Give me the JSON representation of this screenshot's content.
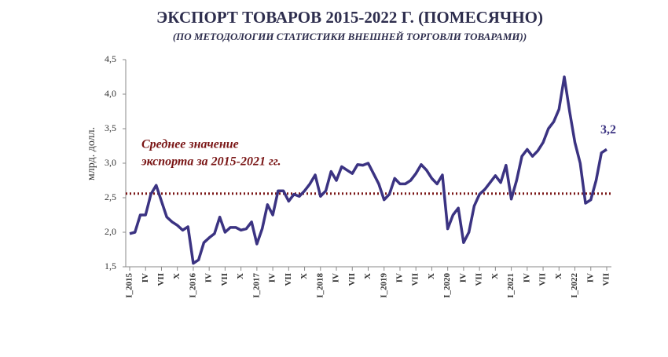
{
  "chart_data": {
    "type": "line",
    "title": "ЭКСПОРТ ТОВАРОВ 2015-2022 Г. (ПОМЕСЯЧНО)",
    "subtitle": "(ПО МЕТОДОЛОГИИ СТАТИСТИКИ ВНЕШНЕЙ ТОРГОВЛИ ТОВАРАМИ))",
    "y_label": "млрд. долл.",
    "categories": [
      "I_2015",
      null,
      null,
      "IV",
      null,
      null,
      "VII",
      null,
      null,
      "X",
      null,
      null,
      "I_2016",
      null,
      null,
      "IV",
      null,
      null,
      "VII",
      null,
      null,
      "X",
      null,
      null,
      "I_2017",
      null,
      null,
      "IV",
      null,
      null,
      "VII",
      null,
      null,
      "X",
      null,
      null,
      "I_2018",
      null,
      null,
      "IV",
      null,
      null,
      "VII",
      null,
      null,
      "X",
      null,
      null,
      "I_2019",
      null,
      null,
      "IV",
      null,
      null,
      "VII",
      null,
      null,
      "X",
      null,
      null,
      "I_2020",
      null,
      null,
      "IV",
      null,
      null,
      "VII",
      null,
      null,
      "X",
      null,
      null,
      "I_2021",
      null,
      null,
      "IV",
      null,
      null,
      "VII",
      null,
      null,
      "X",
      null,
      null,
      "I_2022",
      null,
      null,
      "IV",
      null,
      null,
      "VII"
    ],
    "series": [
      {
        "color": "#3b3382",
        "values": [
          1.98,
          2.0,
          2.25,
          2.25,
          2.55,
          2.68,
          2.45,
          2.22,
          2.15,
          2.1,
          2.03,
          2.08,
          1.55,
          1.6,
          1.85,
          1.92,
          1.98,
          2.22,
          2.0,
          2.07,
          2.07,
          2.03,
          2.05,
          2.15,
          1.83,
          2.05,
          2.4,
          2.25,
          2.6,
          2.6,
          2.45,
          2.55,
          2.52,
          2.6,
          2.7,
          2.83,
          2.52,
          2.6,
          2.88,
          2.75,
          2.95,
          2.9,
          2.85,
          2.98,
          2.97,
          3.0,
          2.85,
          2.7,
          2.47,
          2.55,
          2.78,
          2.7,
          2.7,
          2.75,
          2.85,
          2.98,
          2.9,
          2.78,
          2.7,
          2.83,
          2.05,
          2.25,
          2.35,
          1.85,
          2.0,
          2.38,
          2.55,
          2.62,
          2.72,
          2.82,
          2.72,
          2.97,
          2.48,
          2.75,
          3.1,
          3.2,
          3.1,
          3.18,
          3.3,
          3.5,
          3.6,
          3.78,
          4.25,
          3.75,
          3.3,
          3.0,
          2.42,
          2.47,
          2.75,
          3.15,
          3.2
        ],
        "value_labels": {
          "90": "3,2"
        }
      }
    ],
    "reference_line": {
      "value": 2.56,
      "color": "#7a1616",
      "label": [
        "Среднее значение",
        "экспорта за 2015-2021 гг."
      ]
    },
    "ylim": [
      1.5,
      4.5
    ],
    "yticks": [
      {
        "value": 1.5,
        "label": "1,5"
      },
      {
        "value": 2.0,
        "label": "2,0"
      },
      {
        "value": 2.5,
        "label": "2,5"
      },
      {
        "value": 3.0,
        "label": "3,0"
      },
      {
        "value": 3.5,
        "label": "3,5"
      },
      {
        "value": 4.0,
        "label": "4,0"
      },
      {
        "value": 4.5,
        "label": "4,5"
      }
    ]
  }
}
